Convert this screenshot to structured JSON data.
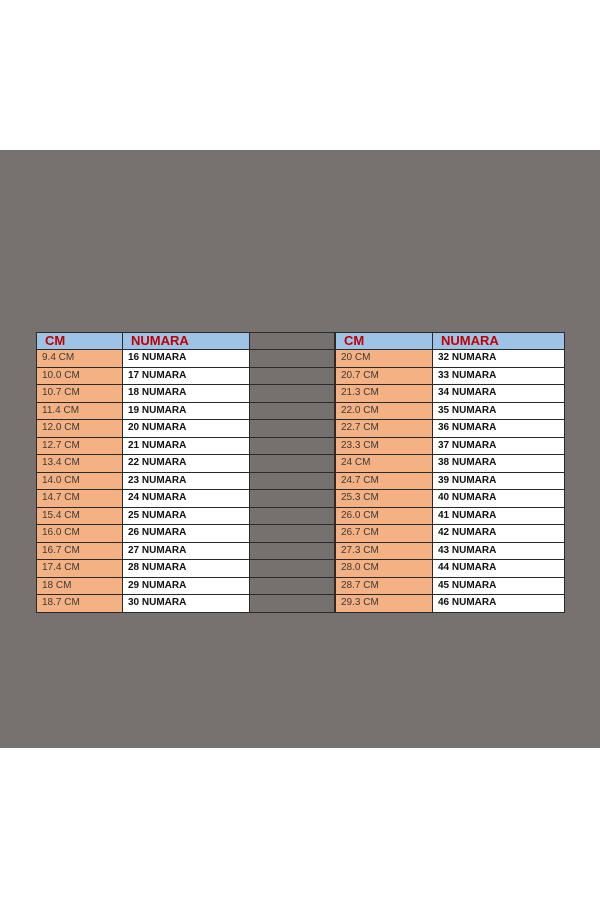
{
  "colors": {
    "header_bg": "#9dc3e6",
    "header_text": "#c00000",
    "cm_bg": "#f4b183",
    "numara_bg": "#ffffff",
    "background": "#777170"
  },
  "left": {
    "headers": {
      "cm": "CM",
      "numara": "NUMARA"
    },
    "rows": [
      {
        "cm": "9.4 CM",
        "numara": "16 NUMARA"
      },
      {
        "cm": "10.0 CM",
        "numara": "17 NUMARA"
      },
      {
        "cm": "10.7 CM",
        "numara": "18 NUMARA"
      },
      {
        "cm": "11.4 CM",
        "numara": "19 NUMARA"
      },
      {
        "cm": "12.0 CM",
        "numara": "20 NUMARA"
      },
      {
        "cm": "12.7 CM",
        "numara": "21 NUMARA"
      },
      {
        "cm": "13.4 CM",
        "numara": "22 NUMARA"
      },
      {
        "cm": "14.0 CM",
        "numara": "23 NUMARA"
      },
      {
        "cm": "14.7 CM",
        "numara": "24 NUMARA"
      },
      {
        "cm": "15.4 CM",
        "numara": "25 NUMARA"
      },
      {
        "cm": "16.0 CM",
        "numara": "26 NUMARA"
      },
      {
        "cm": "16.7 CM",
        "numara": "27 NUMARA"
      },
      {
        "cm": "17.4 CM",
        "numara": "28 NUMARA"
      },
      {
        "cm": "18 CM",
        "numara": "29 NUMARA"
      },
      {
        "cm": "18.7 CM",
        "numara": "30 NUMARA"
      }
    ]
  },
  "right": {
    "headers": {
      "cm": "CM",
      "numara": "NUMARA"
    },
    "rows": [
      {
        "cm": "20 CM",
        "numara": "32 NUMARA"
      },
      {
        "cm": "20.7 CM",
        "numara": "33 NUMARA"
      },
      {
        "cm": "21.3 CM",
        "numara": "34 NUMARA"
      },
      {
        "cm": "22.0 CM",
        "numara": "35 NUMARA"
      },
      {
        "cm": "22.7 CM",
        "numara": "36 NUMARA"
      },
      {
        "cm": "23.3 CM",
        "numara": "37 NUMARA"
      },
      {
        "cm": "24 CM",
        "numara": "38 NUMARA"
      },
      {
        "cm": "24.7 CM",
        "numara": "39 NUMARA"
      },
      {
        "cm": "25.3 CM",
        "numara": "40 NUMARA"
      },
      {
        "cm": "26.0 CM",
        "numara": "41 NUMARA"
      },
      {
        "cm": "26.7 CM",
        "numara": "42 NUMARA"
      },
      {
        "cm": "27.3 CM",
        "numara": "43 NUMARA"
      },
      {
        "cm": "28.0 CM",
        "numara": "44 NUMARA"
      },
      {
        "cm": "28.7 CM",
        "numara": "45 NUMARA"
      },
      {
        "cm": "29.3 CM",
        "numara": "46 NUMARA"
      }
    ]
  }
}
